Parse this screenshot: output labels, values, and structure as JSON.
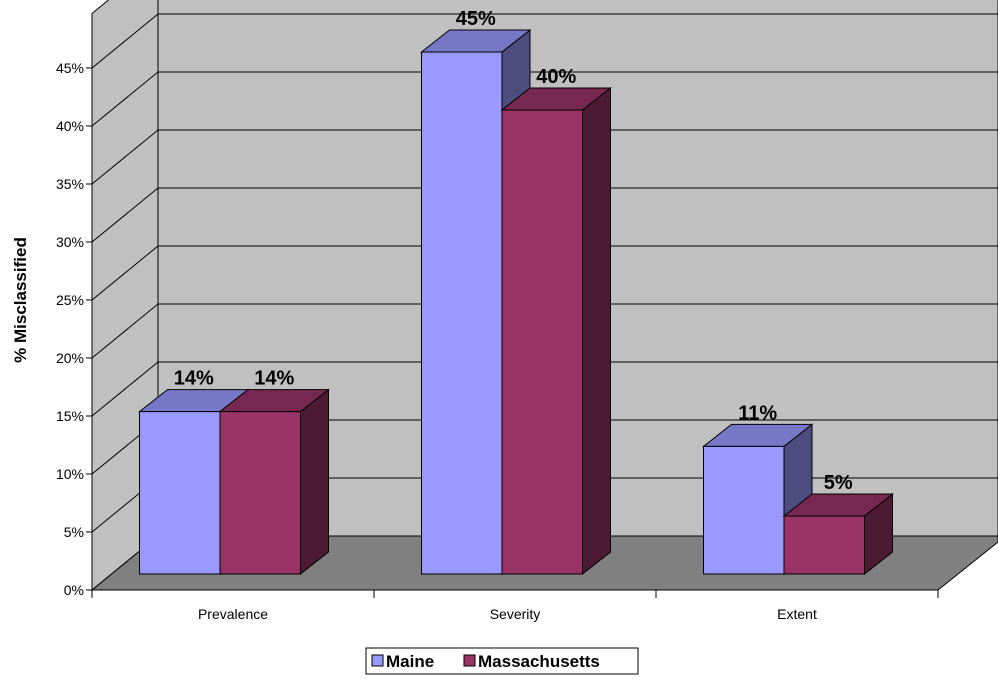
{
  "chart_data": {
    "type": "bar",
    "title": "",
    "xlabel": "",
    "ylabel": "% Misclassified",
    "categories": [
      "Prevalence",
      "Severity",
      "Extent"
    ],
    "series": [
      {
        "name": "Maine",
        "values": [
          14,
          45,
          11
        ],
        "color": "#9999FF"
      },
      {
        "name": "Massachusetts",
        "values": [
          14,
          40,
          5
        ],
        "color": "#993366"
      }
    ],
    "data_labels": [
      [
        "14%",
        "45%",
        "11%"
      ],
      [
        "14%",
        "40%",
        "5%"
      ]
    ],
    "ylim": [
      0,
      45
    ],
    "yticks": [
      0,
      5,
      10,
      15,
      20,
      25,
      30,
      35,
      40,
      45
    ],
    "ytick_labels": [
      "0%",
      "5%",
      "10%",
      "15%",
      "20%",
      "25%",
      "30%",
      "35%",
      "40%",
      "45%"
    ],
    "grid": true,
    "style": "3d-clustered-column",
    "legend_position": "bottom",
    "colors": {
      "back_wall": "#C0C0C0",
      "side_wall": "#C0C0C0",
      "floor": "#808080",
      "gridline": "#000000"
    }
  }
}
